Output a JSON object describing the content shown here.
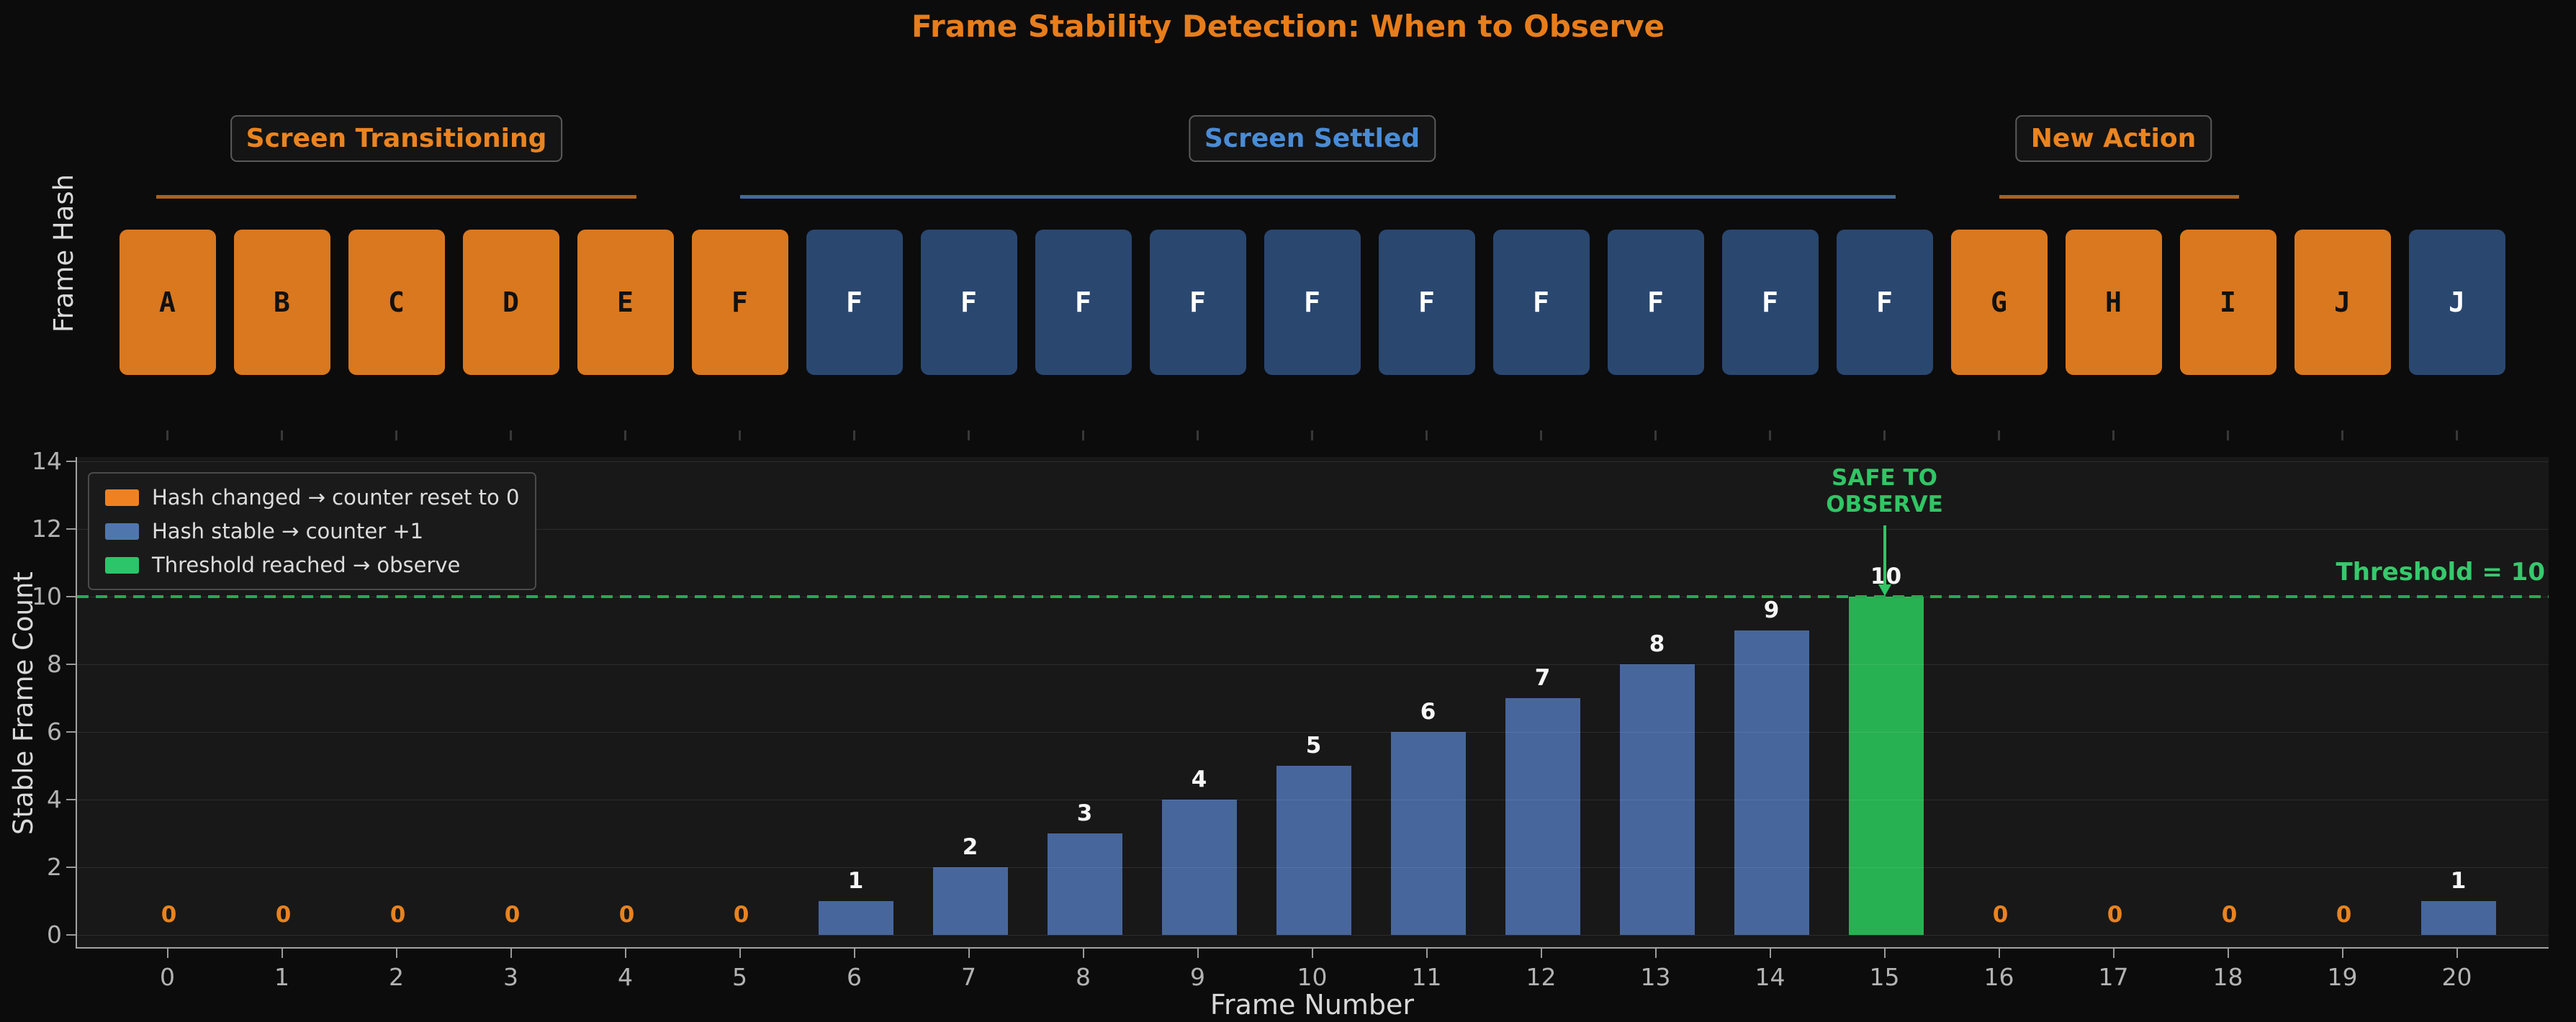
{
  "title": "Frame Stability Detection: When to Observe",
  "left_axis_label_top": "Frame Hash",
  "regions": [
    {
      "label": "Screen Transitioning",
      "color_key": "region_orange",
      "line_color_key": "line_orange",
      "center_frame": 2,
      "line_from": -0.1,
      "line_to": 4.1
    },
    {
      "label": "Screen Settled",
      "color_key": "region_blue",
      "line_color_key": "line_blue",
      "center_frame": 10,
      "line_from": 5.0,
      "line_to": 15.1
    },
    {
      "label": "New Action",
      "color_key": "region_orange",
      "line_color_key": "line_orange",
      "center_frame": 17,
      "line_from": 16.0,
      "line_to": 18.1
    }
  ],
  "frames": [
    {
      "frame": 0,
      "hash": "A",
      "state": "changed"
    },
    {
      "frame": 1,
      "hash": "B",
      "state": "changed"
    },
    {
      "frame": 2,
      "hash": "C",
      "state": "changed"
    },
    {
      "frame": 3,
      "hash": "D",
      "state": "changed"
    },
    {
      "frame": 4,
      "hash": "E",
      "state": "changed"
    },
    {
      "frame": 5,
      "hash": "F",
      "state": "changed"
    },
    {
      "frame": 6,
      "hash": "F",
      "state": "stable"
    },
    {
      "frame": 7,
      "hash": "F",
      "state": "stable"
    },
    {
      "frame": 8,
      "hash": "F",
      "state": "stable"
    },
    {
      "frame": 9,
      "hash": "F",
      "state": "stable"
    },
    {
      "frame": 10,
      "hash": "F",
      "state": "stable"
    },
    {
      "frame": 11,
      "hash": "F",
      "state": "stable"
    },
    {
      "frame": 12,
      "hash": "F",
      "state": "stable"
    },
    {
      "frame": 13,
      "hash": "F",
      "state": "stable"
    },
    {
      "frame": 14,
      "hash": "F",
      "state": "stable"
    },
    {
      "frame": 15,
      "hash": "F",
      "state": "stable"
    },
    {
      "frame": 16,
      "hash": "G",
      "state": "changed"
    },
    {
      "frame": 17,
      "hash": "H",
      "state": "changed"
    },
    {
      "frame": 18,
      "hash": "I",
      "state": "changed"
    },
    {
      "frame": 19,
      "hash": "J",
      "state": "changed"
    },
    {
      "frame": 20,
      "hash": "J",
      "state": "stable"
    }
  ],
  "chart_data": {
    "type": "bar",
    "x": [
      0,
      1,
      2,
      3,
      4,
      5,
      6,
      7,
      8,
      9,
      10,
      11,
      12,
      13,
      14,
      15,
      16,
      17,
      18,
      19,
      20
    ],
    "values": [
      0,
      0,
      0,
      0,
      0,
      0,
      1,
      2,
      3,
      4,
      5,
      6,
      7,
      8,
      9,
      10,
      0,
      0,
      0,
      0,
      1
    ],
    "bar_states": [
      "changed",
      "changed",
      "changed",
      "changed",
      "changed",
      "changed",
      "stable",
      "stable",
      "stable",
      "stable",
      "stable",
      "stable",
      "stable",
      "stable",
      "stable",
      "observe",
      "changed",
      "changed",
      "changed",
      "changed",
      "stable"
    ],
    "xlabel": "Frame Number",
    "ylabel": "Stable Frame Count",
    "ylim": [
      0,
      14
    ],
    "yticks": [
      0,
      2,
      4,
      6,
      8,
      10,
      12,
      14
    ],
    "grid": true,
    "legend_position": "upper-left",
    "legend": [
      {
        "label": "Hash changed → counter reset to 0",
        "color": "#ef8122"
      },
      {
        "label": "Hash stable → counter +1",
        "color": "#5077ad"
      },
      {
        "label": "Threshold reached → observe",
        "color": "#2cc56a"
      }
    ],
    "threshold": {
      "value": 10,
      "label": "Threshold = 10"
    },
    "annotation": {
      "line1": "SAFE TO",
      "line2": "OBSERVE",
      "frame": 15
    },
    "value_label_colors": {
      "zero": "#e8831f",
      "nonzero": "#f5f5f5"
    }
  },
  "colors": {
    "page_bg": "#0c0c0c",
    "plot_bg": "#181818",
    "box_orange": "#d9781f",
    "box_blue": "#2a476f",
    "box_text_on_orange": "#111111",
    "box_text_on_blue": "#ffffff",
    "bar_blue": "#47669c",
    "bar_green": "#27b152",
    "title": "#e87d1a",
    "region_orange": "#ea8420",
    "region_blue": "#4a8bd4",
    "line_orange": "#a9621f",
    "line_blue": "#45699c",
    "threshold_line": "#2aa852",
    "threshold_text": "#37c96d",
    "annotation_text": "#32c565",
    "tick_label": "#b3b3b3",
    "axis_label": "#d9d9d9"
  }
}
